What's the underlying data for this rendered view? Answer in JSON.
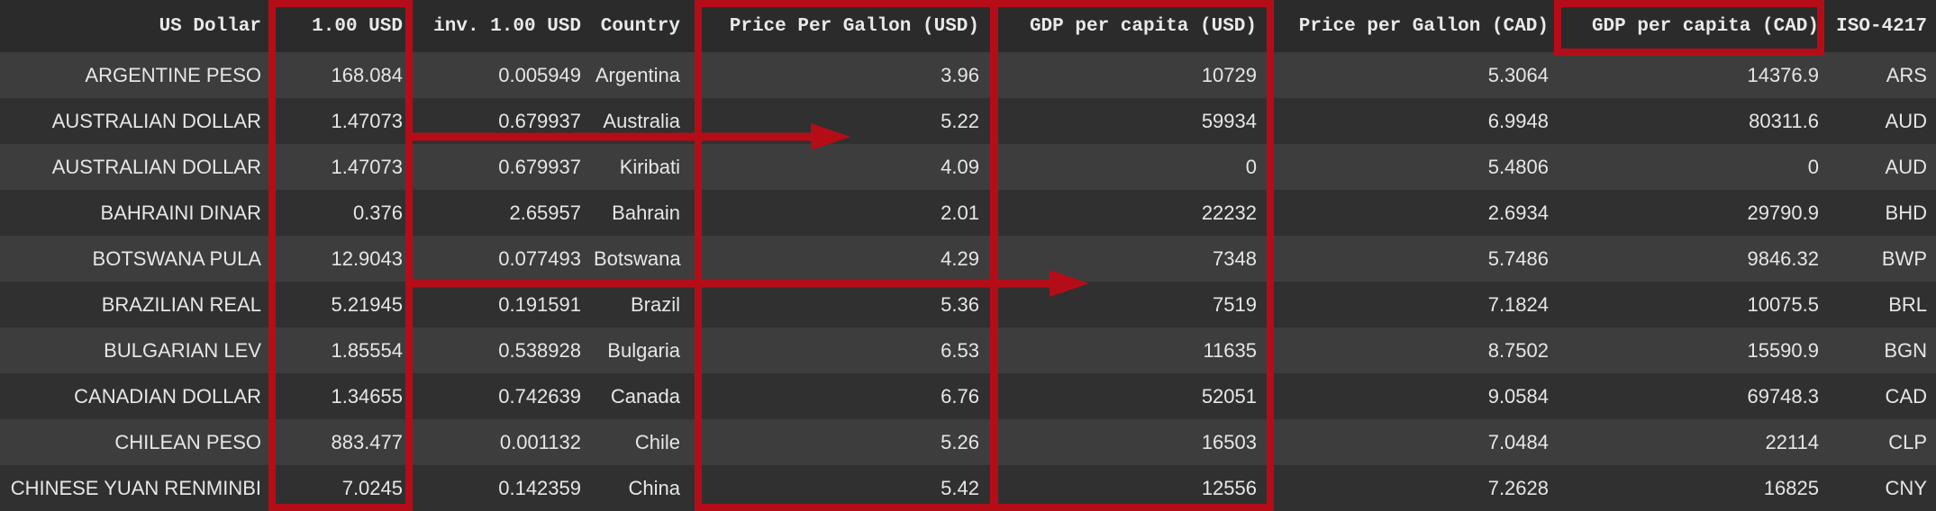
{
  "table": {
    "columns": [
      "US Dollar",
      "1.00 USD",
      "inv. 1.00 USD",
      "Country",
      "Price Per Gallon (USD)",
      "GDP per capita (USD)",
      "Price per Gallon (CAD)",
      "GDP per capita (CAD)",
      "ISO-4217"
    ],
    "rows": [
      [
        "ARGENTINE PESO",
        "168.084",
        "0.005949",
        "Argentina",
        "3.96",
        "10729",
        "5.3064",
        "14376.9",
        "ARS"
      ],
      [
        "AUSTRALIAN DOLLAR",
        "1.47073",
        "0.679937",
        "Australia",
        "5.22",
        "59934",
        "6.9948",
        "80311.6",
        "AUD"
      ],
      [
        "AUSTRALIAN DOLLAR",
        "1.47073",
        "0.679937",
        "Kiribati",
        "4.09",
        "0",
        "5.4806",
        "0",
        "AUD"
      ],
      [
        "BAHRAINI DINAR",
        "0.376",
        "2.65957",
        "Bahrain",
        "2.01",
        "22232",
        "2.6934",
        "29790.9",
        "BHD"
      ],
      [
        "BOTSWANA PULA",
        "12.9043",
        "0.077493",
        "Botswana",
        "4.29",
        "7348",
        "5.7486",
        "9846.32",
        "BWP"
      ],
      [
        "BRAZILIAN REAL",
        "5.21945",
        "0.191591",
        "Brazil",
        "5.36",
        "7519",
        "7.1824",
        "10075.5",
        "BRL"
      ],
      [
        "BULGARIAN LEV",
        "1.85554",
        "0.538928",
        "Bulgaria",
        "6.53",
        "11635",
        "8.7502",
        "15590.9",
        "BGN"
      ],
      [
        "CANADIAN DOLLAR",
        "1.34655",
        "0.742639",
        "Canada",
        "6.76",
        "52051",
        "9.0584",
        "69748.3",
        "CAD"
      ],
      [
        "CHILEAN PESO",
        "883.477",
        "0.001132",
        "Chile",
        "5.26",
        "16503",
        "7.0484",
        "22114",
        "CLP"
      ],
      [
        "CHINESE YUAN RENMINBI",
        "7.0245",
        "0.142359",
        "China",
        "5.42",
        "12556",
        "7.2628",
        "16825",
        "CNY"
      ]
    ]
  },
  "annotations": {
    "highlight_color": "#b50d18",
    "highlighted_columns": [
      "1.00 USD",
      "Price Per Gallon (USD)",
      "GDP per capita (USD)",
      "GDP per capita (CAD)"
    ],
    "arrows": [
      {
        "from": "1.00 USD",
        "to": "Price Per Gallon (USD)"
      },
      {
        "from": "1.00 USD",
        "to": "GDP per capita (USD)"
      }
    ]
  }
}
